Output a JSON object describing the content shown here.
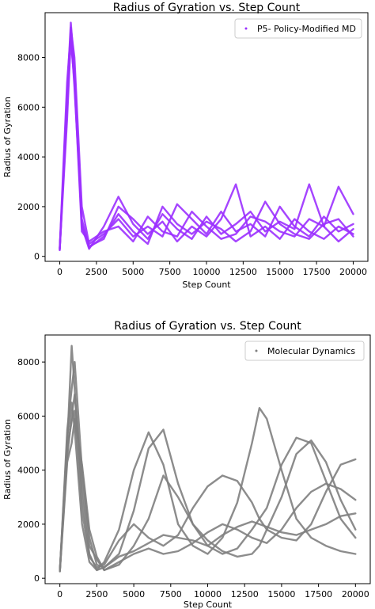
{
  "chart_data": [
    {
      "type": "line",
      "title": "Radius of Gyration vs. Step Count",
      "xlabel": "Step Count",
      "ylabel": "Radius of Gyration",
      "xlim": [
        -1000,
        21000
      ],
      "ylim": [
        -200,
        9800
      ],
      "xticks": [
        0,
        2500,
        5000,
        7500,
        10000,
        12500,
        15000,
        17500,
        20000
      ],
      "xtick_labels": [
        "0",
        "2500",
        "5000",
        "7500",
        "10000",
        "12500",
        "15000",
        "17500",
        "20000"
      ],
      "yticks": [
        0,
        2000,
        4000,
        6000,
        8000
      ],
      "ytick_labels": [
        "0",
        "2000",
        "4000",
        "6000",
        "8000"
      ],
      "grid": false,
      "legend_position": "top-right",
      "color": "#9b30ff",
      "series": [
        {
          "name": "P5- Policy-Modified MD",
          "x": [
            0,
            500,
            750,
            1000,
            1500,
            2000,
            3000,
            4000,
            5000,
            6000,
            7000,
            8000,
            9000,
            10000,
            11000,
            12000,
            13000,
            14000,
            15000,
            16000,
            17000,
            18000,
            19000,
            20000
          ],
          "values": [
            300,
            6500,
            9400,
            7500,
            1200,
            300,
            1200,
            2400,
            1300,
            700,
            1700,
            1100,
            700,
            1600,
            900,
            1300,
            1800,
            1000,
            1400,
            1100,
            2900,
            1200,
            2800,
            1700
          ]
        },
        {
          "x": [
            0,
            500,
            750,
            1000,
            1500,
            2000,
            3000,
            4000,
            5000,
            6000,
            7000,
            8000,
            9000,
            10000,
            11000,
            12000,
            13000,
            14000,
            15000,
            16000,
            17000,
            18000,
            19000,
            20000
          ],
          "values": [
            250,
            6000,
            9200,
            8000,
            2000,
            500,
            900,
            1500,
            800,
            1200,
            800,
            2100,
            1500,
            900,
            1800,
            1000,
            1300,
            800,
            2000,
            1200,
            800,
            1600,
            1000,
            1300
          ]
        },
        {
          "x": [
            0,
            500,
            750,
            1000,
            1500,
            2000,
            3000,
            4000,
            5000,
            6000,
            7000,
            8000,
            9000,
            10000,
            11000,
            12000,
            13000,
            14000,
            15000,
            16000,
            17000,
            18000,
            19000,
            20000
          ],
          "values": [
            350,
            7000,
            9000,
            6800,
            1500,
            400,
            700,
            2000,
            1500,
            900,
            1400,
            600,
            1200,
            800,
            1500,
            2900,
            800,
            1200,
            700,
            1500,
            1000,
            700,
            1200,
            900
          ]
        },
        {
          "x": [
            0,
            500,
            750,
            1000,
            1500,
            2000,
            3000,
            4000,
            5000,
            6000,
            7000,
            8000,
            9000,
            10000,
            11000,
            12000,
            13000,
            14000,
            15000,
            16000,
            17000,
            18000,
            19000,
            20000
          ],
          "values": [
            300,
            5500,
            8700,
            7000,
            1000,
            600,
            1000,
            1200,
            600,
            1600,
            1000,
            800,
            1800,
            1200,
            700,
            900,
            1600,
            1400,
            1000,
            800,
            1500,
            1200,
            600,
            1100
          ]
        },
        {
          "x": [
            0,
            500,
            750,
            1000,
            1500,
            2000,
            3000,
            4000,
            5000,
            6000,
            7000,
            8000,
            9000,
            10000,
            11000,
            12000,
            13000,
            14000,
            15000,
            16000,
            17000,
            18000,
            19000,
            20000
          ],
          "values": [
            280,
            6200,
            9100,
            7200,
            1300,
            350,
            800,
            1700,
            1000,
            500,
            2000,
            1300,
            900,
            1400,
            1100,
            600,
            1000,
            2200,
            1300,
            900,
            700,
            1300,
            1500,
            800
          ]
        }
      ]
    },
    {
      "type": "line",
      "title": "Radius of Gyration vs. Step Count",
      "xlabel": "Step Count",
      "ylabel": "Radius of Gyration",
      "xlim": [
        -1000,
        21000
      ],
      "ylim": [
        -200,
        9000
      ],
      "xticks": [
        0,
        2500,
        5000,
        7500,
        10000,
        12500,
        15000,
        17500,
        20000
      ],
      "xtick_labels": [
        "0",
        "2500",
        "5000",
        "7500",
        "10000",
        "12500",
        "15000",
        "17500",
        "20000"
      ],
      "yticks": [
        0,
        2000,
        4000,
        6000,
        8000
      ],
      "ytick_labels": [
        "0",
        "2000",
        "4000",
        "6000",
        "8000"
      ],
      "grid": false,
      "legend_position": "top-right",
      "color": "#808080",
      "series": [
        {
          "name": "Molecular Dynamics",
          "x": [
            0,
            500,
            800,
            1000,
            1500,
            2000,
            2500,
            3000,
            4000,
            5000,
            6000,
            7000,
            8000,
            9000,
            10000,
            11000,
            12000,
            13000,
            13500,
            14000,
            15000,
            16000,
            17000,
            18000,
            19000,
            20000
          ],
          "values": [
            300,
            5000,
            8600,
            7000,
            3000,
            900,
            300,
            600,
            1800,
            4000,
            5400,
            4200,
            2000,
            1200,
            900,
            1500,
            2800,
            5000,
            6300,
            5900,
            4000,
            2200,
            1500,
            1200,
            1000,
            900
          ]
        },
        {
          "x": [
            0,
            500,
            800,
            1000,
            1500,
            2000,
            2500,
            3000,
            4000,
            5000,
            6000,
            7000,
            8000,
            9000,
            10000,
            11000,
            12000,
            13000,
            13500,
            14000,
            15000,
            16000,
            17000,
            18000,
            19000,
            20000
          ],
          "values": [
            250,
            5500,
            7000,
            8000,
            4000,
            1500,
            500,
            400,
            900,
            2500,
            4800,
            5500,
            3500,
            2000,
            1200,
            900,
            1100,
            1800,
            2200,
            2600,
            4200,
            5200,
            5000,
            3600,
            2200,
            1500
          ]
        },
        {
          "x": [
            0,
            500,
            800,
            1000,
            1500,
            2000,
            2500,
            3000,
            4000,
            5000,
            6000,
            7000,
            8000,
            9000,
            10000,
            11000,
            12000,
            13000,
            13500,
            14000,
            15000,
            16000,
            17000,
            18000,
            19000,
            20000
          ],
          "values": [
            300,
            4500,
            6000,
            6800,
            3500,
            1200,
            700,
            300,
            500,
            1200,
            2200,
            3800,
            3000,
            2000,
            1400,
            1000,
            800,
            900,
            1200,
            1800,
            3000,
            4600,
            5100,
            4300,
            2900,
            1800
          ]
        },
        {
          "x": [
            0,
            500,
            800,
            1000,
            1500,
            2000,
            2500,
            3000,
            4000,
            5000,
            6000,
            7000,
            8000,
            9000,
            10000,
            11000,
            12000,
            13000,
            13500,
            14000,
            15000,
            16000,
            17000,
            18000,
            19000,
            20000
          ],
          "values": [
            280,
            4800,
            5800,
            6200,
            2500,
            800,
            400,
            500,
            1400,
            2000,
            1500,
            1200,
            1600,
            2600,
            3400,
            3800,
            3600,
            2800,
            2200,
            1800,
            1500,
            1400,
            2000,
            3200,
            4200,
            4400
          ]
        },
        {
          "x": [
            0,
            500,
            800,
            1000,
            1500,
            2000,
            2500,
            3000,
            4000,
            5000,
            6000,
            7000,
            8000,
            9000,
            10000,
            11000,
            12000,
            13000,
            13500,
            14000,
            15000,
            16000,
            17000,
            18000,
            19000,
            20000
          ],
          "values": [
            320,
            5200,
            6500,
            5500,
            2000,
            600,
            300,
            400,
            800,
            1000,
            1300,
            1600,
            1500,
            1400,
            1200,
            1600,
            1900,
            2100,
            2000,
            1900,
            1700,
            1600,
            1800,
            2000,
            2300,
            2400
          ]
        },
        {
          "x": [
            0,
            500,
            800,
            1000,
            1500,
            2000,
            2500,
            3000,
            4000,
            5000,
            6000,
            7000,
            8000,
            9000,
            10000,
            11000,
            12000,
            13000,
            13500,
            14000,
            15000,
            16000,
            17000,
            18000,
            19000,
            20000
          ],
          "values": [
            260,
            4300,
            5000,
            5900,
            4200,
            1800,
            800,
            300,
            600,
            900,
            1100,
            900,
            1000,
            1300,
            1700,
            2000,
            1800,
            1500,
            1400,
            1300,
            1800,
            2600,
            3200,
            3500,
            3300,
            2900
          ]
        }
      ]
    }
  ]
}
